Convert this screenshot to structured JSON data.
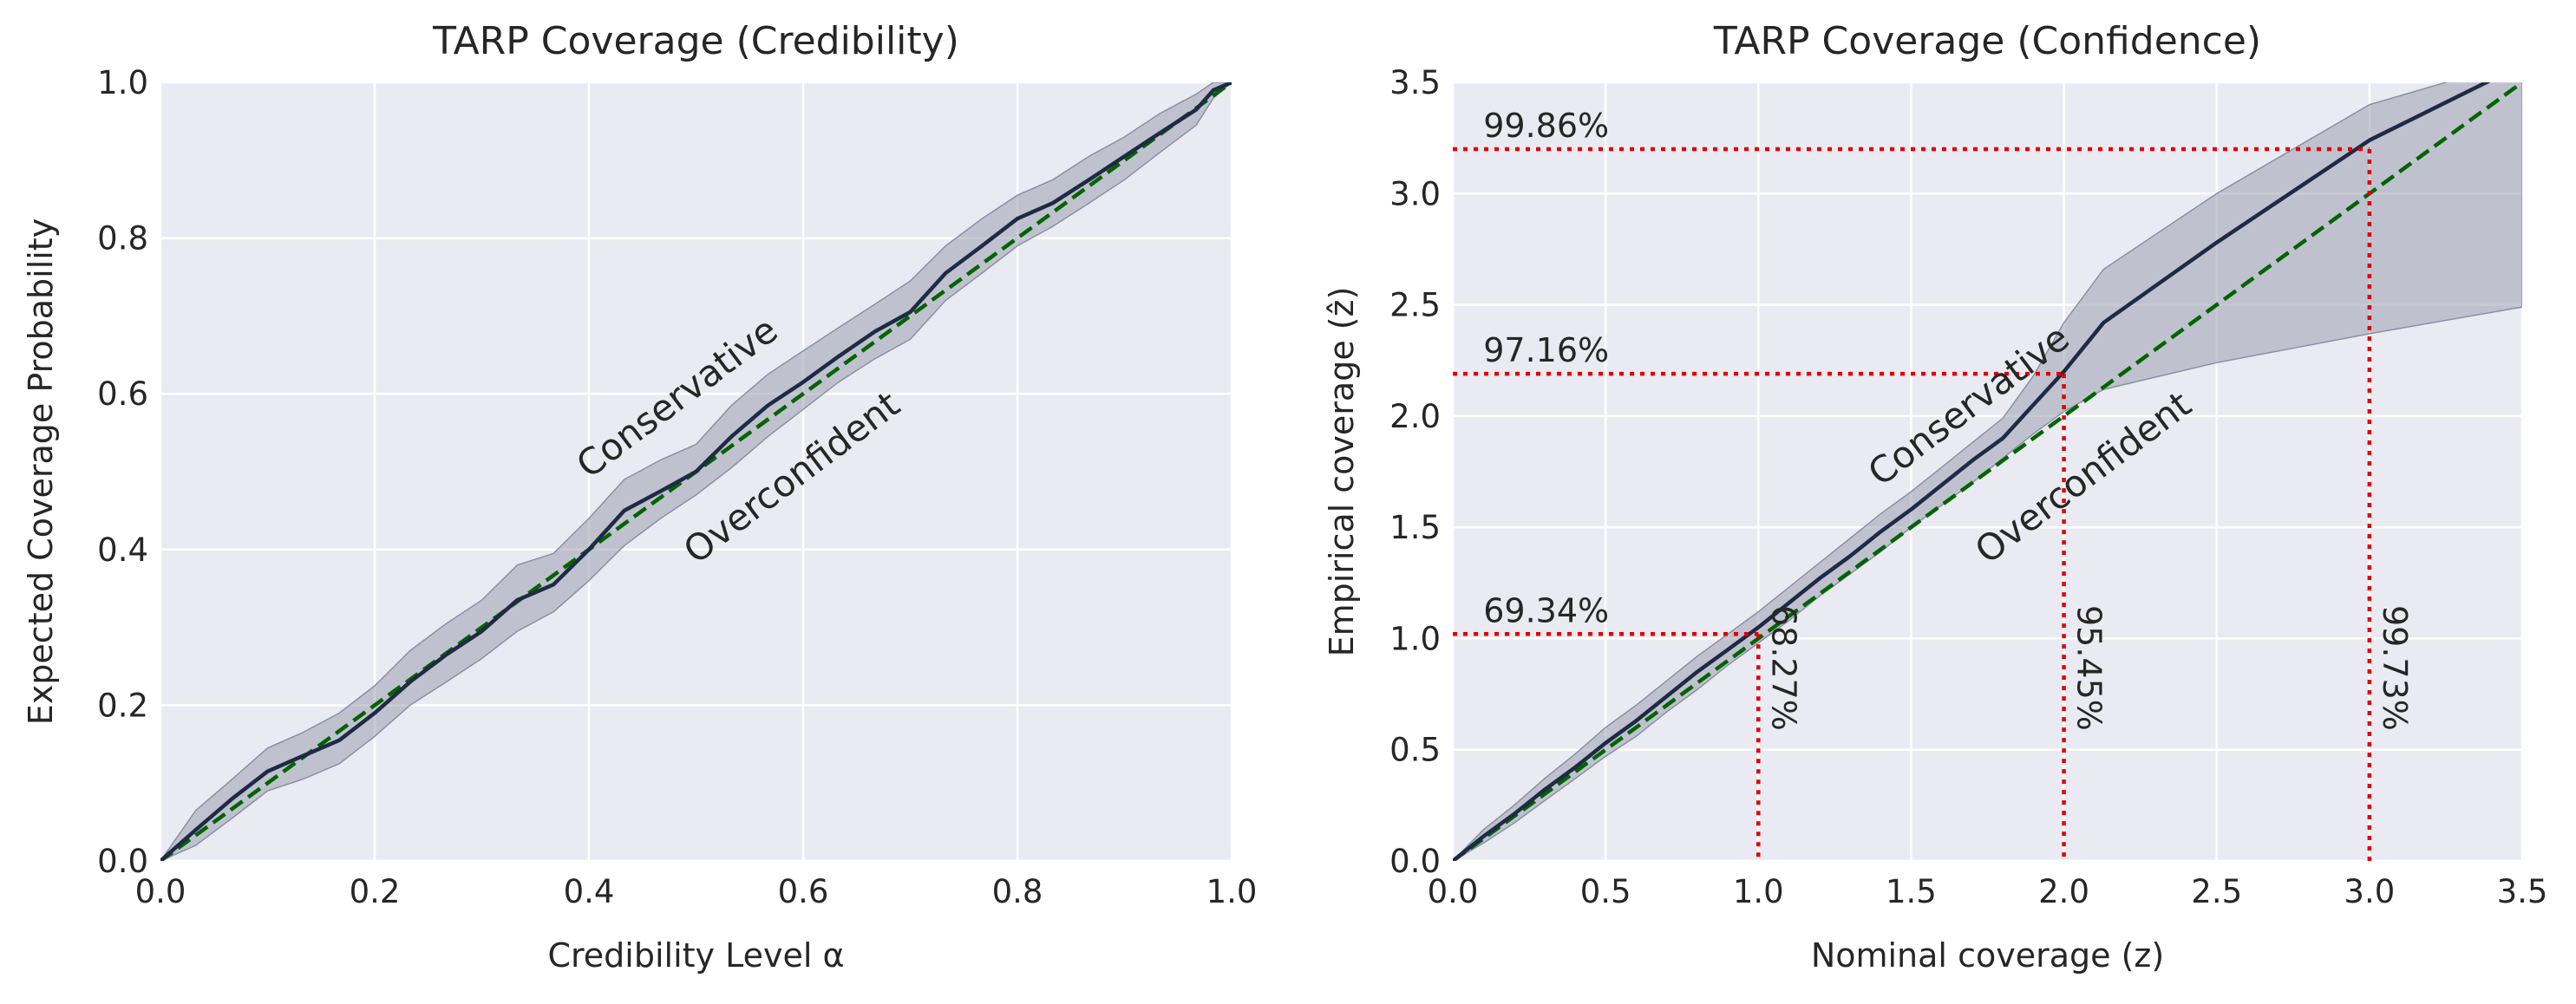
{
  "chart_data": [
    {
      "type": "line",
      "title": "TARP Coverage (Credibility)",
      "xlabel": "Credibility Level α",
      "ylabel": "Expected Coverage Probability",
      "xlim": [
        0,
        1
      ],
      "ylim": [
        0,
        1
      ],
      "xticks": [
        "0.0",
        "0.2",
        "0.4",
        "0.6",
        "0.8",
        "1.0"
      ],
      "yticks": [
        "0.0",
        "0.2",
        "0.4",
        "0.6",
        "0.8",
        "1.0"
      ],
      "grid": true,
      "colors": {
        "line": "#1f2a44",
        "band": "#9aa0b1",
        "reference": "#006400",
        "background": "#eaeaf2"
      },
      "series": [
        {
          "x": [
            0,
            0.033,
            0.067,
            0.1,
            0.133,
            0.167,
            0.2,
            0.233,
            0.267,
            0.3,
            0.333,
            0.367,
            0.4,
            0.433,
            0.467,
            0.5,
            0.533,
            0.567,
            0.6,
            0.633,
            0.667,
            0.7,
            0.733,
            0.767,
            0.8,
            0.833,
            0.867,
            0.9,
            0.933,
            0.967,
            0.983,
            1.0
          ],
          "y": [
            0,
            0.04,
            0.08,
            0.115,
            0.135,
            0.155,
            0.19,
            0.23,
            0.265,
            0.295,
            0.335,
            0.355,
            0.4,
            0.45,
            0.475,
            0.5,
            0.545,
            0.585,
            0.615,
            0.648,
            0.68,
            0.705,
            0.755,
            0.79,
            0.825,
            0.845,
            0.875,
            0.905,
            0.935,
            0.965,
            0.99,
            1.0
          ],
          "lower": [
            0,
            0.02,
            0.055,
            0.09,
            0.105,
            0.125,
            0.16,
            0.2,
            0.23,
            0.26,
            0.295,
            0.32,
            0.36,
            0.405,
            0.44,
            0.47,
            0.505,
            0.545,
            0.58,
            0.615,
            0.645,
            0.67,
            0.72,
            0.755,
            0.79,
            0.815,
            0.845,
            0.875,
            0.91,
            0.945,
            0.98,
            1.0
          ],
          "upper": [
            0,
            0.065,
            0.105,
            0.145,
            0.165,
            0.19,
            0.225,
            0.27,
            0.305,
            0.335,
            0.38,
            0.395,
            0.44,
            0.49,
            0.515,
            0.535,
            0.585,
            0.625,
            0.655,
            0.685,
            0.715,
            0.745,
            0.79,
            0.825,
            0.855,
            0.875,
            0.905,
            0.93,
            0.96,
            0.985,
            1.0,
            1.0
          ]
        }
      ],
      "reference_line": {
        "x": [
          0,
          1
        ],
        "y": [
          0,
          1
        ]
      },
      "annotations": [
        {
          "text": "Conservative",
          "x": 0.4,
          "y": 0.49,
          "rotation": 37
        },
        {
          "text": "Overconfident",
          "x": 0.5,
          "y": 0.38,
          "rotation": 37
        }
      ]
    },
    {
      "type": "line",
      "title": "TARP Coverage (Confidence)",
      "xlabel": "Nominal coverage (z)",
      "ylabel": "Empirical coverage (ẑ)",
      "xlim": [
        0,
        3.5
      ],
      "ylim": [
        0,
        3.5
      ],
      "xticks": [
        "0.0",
        "0.5",
        "1.0",
        "1.5",
        "2.0",
        "2.5",
        "3.0",
        "3.5"
      ],
      "yticks": [
        "0.0",
        "0.5",
        "1.0",
        "1.5",
        "2.0",
        "2.5",
        "3.0",
        "3.5"
      ],
      "grid": true,
      "colors": {
        "line": "#1f2a44",
        "band": "#9aa0b1",
        "reference": "#006400",
        "guides": "#e00000",
        "background": "#eaeaf2"
      },
      "series": [
        {
          "x": [
            0,
            0.1,
            0.2,
            0.3,
            0.4,
            0.5,
            0.6,
            0.7,
            0.8,
            0.9,
            1.0,
            1.1,
            1.2,
            1.3,
            1.4,
            1.5,
            1.6,
            1.7,
            1.8,
            1.9,
            2.0,
            2.13,
            2.5,
            3.0,
            3.5
          ],
          "y": [
            0,
            0.11,
            0.21,
            0.32,
            0.42,
            0.53,
            0.63,
            0.74,
            0.85,
            0.95,
            1.05,
            1.16,
            1.27,
            1.37,
            1.48,
            1.58,
            1.69,
            1.8,
            1.9,
            2.05,
            2.2,
            2.42,
            2.78,
            3.24,
            3.58
          ],
          "lower": [
            0,
            0.08,
            0.17,
            0.27,
            0.37,
            0.47,
            0.56,
            0.67,
            0.77,
            0.88,
            0.98,
            1.08,
            1.19,
            1.29,
            1.39,
            1.5,
            1.6,
            1.7,
            1.81,
            1.92,
            2.02,
            2.12,
            2.24,
            2.37,
            2.49
          ],
          "upper": [
            0,
            0.14,
            0.25,
            0.37,
            0.48,
            0.6,
            0.7,
            0.81,
            0.92,
            1.02,
            1.12,
            1.23,
            1.34,
            1.45,
            1.56,
            1.66,
            1.77,
            1.88,
            1.99,
            2.18,
            2.42,
            2.66,
            3.0,
            3.4,
            3.6
          ]
        }
      ],
      "reference_line": {
        "x": [
          0,
          3.5
        ],
        "y": [
          0,
          3.5
        ]
      },
      "guides": [
        {
          "x": 1.0,
          "y": 1.02,
          "x_label": "68.27%",
          "y_label": "69.34%"
        },
        {
          "x": 2.0,
          "y": 2.19,
          "x_label": "95.45%",
          "y_label": "97.16%"
        },
        {
          "x": 3.0,
          "y": 3.2,
          "x_label": "99.73%",
          "y_label": "99.86%"
        }
      ],
      "annotations": [
        {
          "text": "Conservative",
          "x": 1.4,
          "y": 1.68,
          "rotation": 37
        },
        {
          "text": "Overconfident",
          "x": 1.75,
          "y": 1.33,
          "rotation": 37
        }
      ]
    }
  ]
}
